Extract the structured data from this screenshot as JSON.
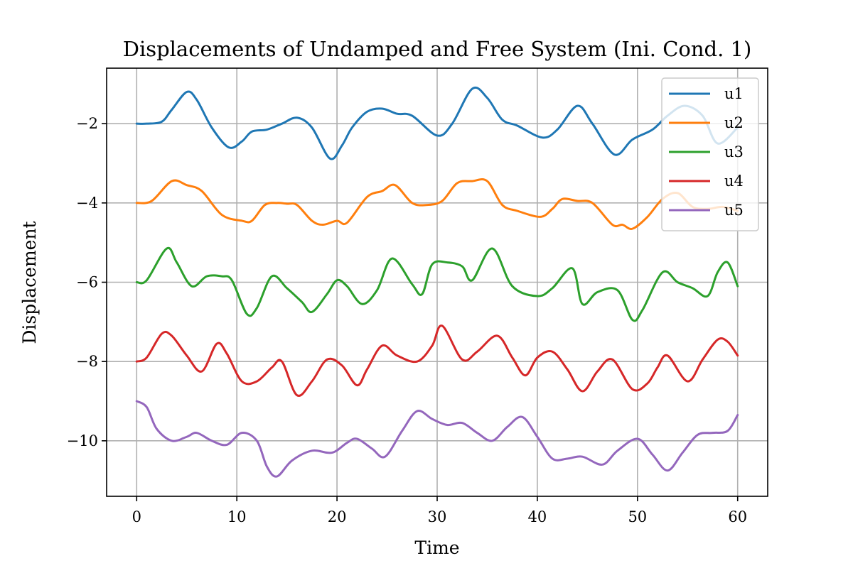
{
  "chart_data": {
    "type": "line",
    "title": "Displacements of Undamped and Free System (Ini. Cond. 1)",
    "xlabel": "Time",
    "ylabel": "Displacement",
    "xlim": [
      -3,
      63
    ],
    "ylim": [
      -11.4,
      -0.6
    ],
    "xticks": [
      0,
      10,
      20,
      30,
      40,
      50,
      60
    ],
    "xtick_labels": [
      "0",
      "10",
      "20",
      "30",
      "40",
      "50",
      "60"
    ],
    "yticks": [
      -2,
      -4,
      -6,
      -8,
      -10
    ],
    "ytick_labels": [
      "−2",
      "−4",
      "−6",
      "−8",
      "−10"
    ],
    "grid": true,
    "legend_position": "top-right",
    "series": [
      {
        "name": "u1",
        "color": "#1f77b4",
        "x": [
          0,
          1,
          2.5,
          3.5,
          5,
          6,
          7.5,
          9.2,
          10.5,
          11.5,
          13,
          14.5,
          16,
          17.5,
          19.3,
          20.5,
          21.5,
          23,
          24.5,
          26,
          27.5,
          30,
          31.5,
          33.5,
          35,
          36.5,
          38,
          40.5,
          42,
          44,
          45.5,
          47.7,
          49.5,
          51.5,
          53,
          54.7,
          56.5,
          58,
          60
        ],
        "y": [
          -2.0,
          -2.0,
          -1.95,
          -1.65,
          -1.2,
          -1.4,
          -2.1,
          -2.6,
          -2.45,
          -2.2,
          -2.15,
          -2.0,
          -1.85,
          -2.1,
          -2.88,
          -2.55,
          -2.1,
          -1.7,
          -1.62,
          -1.75,
          -1.8,
          -2.3,
          -2.0,
          -1.12,
          -1.35,
          -1.9,
          -2.05,
          -2.35,
          -2.15,
          -1.55,
          -2.0,
          -2.78,
          -2.4,
          -2.15,
          -1.8,
          -1.55,
          -1.8,
          -2.5,
          -2.1
        ]
      },
      {
        "name": "u2",
        "color": "#ff7f0e",
        "x": [
          0,
          1.5,
          3.5,
          5,
          6.5,
          8.5,
          10.5,
          11.5,
          12.8,
          14,
          15,
          16,
          17.5,
          18.6,
          20,
          21,
          23,
          24.5,
          25.8,
          27.5,
          29,
          30.5,
          32,
          33.5,
          35,
          36.5,
          38,
          40.3,
          41.5,
          42.5,
          44,
          45.5,
          47.5,
          48.5,
          49.5,
          51,
          52.5,
          54,
          55.5,
          57,
          58.5,
          60
        ],
        "y": [
          -4.0,
          -3.95,
          -3.45,
          -3.55,
          -3.7,
          -4.3,
          -4.45,
          -4.45,
          -4.05,
          -4.0,
          -4.02,
          -4.05,
          -4.45,
          -4.55,
          -4.45,
          -4.5,
          -3.85,
          -3.7,
          -3.55,
          -4.0,
          -4.05,
          -3.95,
          -3.5,
          -3.45,
          -3.45,
          -4.05,
          -4.2,
          -4.35,
          -4.15,
          -3.9,
          -3.95,
          -4.0,
          -4.55,
          -4.55,
          -4.65,
          -4.35,
          -3.9,
          -3.75,
          -4.1,
          -4.15,
          -4.1,
          -4.2
        ]
      },
      {
        "name": "u3",
        "color": "#2ca02c",
        "x": [
          0,
          1,
          3,
          4,
          5.5,
          7,
          8.5,
          9.5,
          11,
          12,
          13.5,
          15,
          16.5,
          17.5,
          19,
          20,
          21,
          22.5,
          24,
          25.5,
          27.5,
          28.5,
          29.5,
          31,
          32.5,
          33.5,
          35.5,
          37.5,
          40,
          41.5,
          43.5,
          44.5,
          46,
          48,
          49.5,
          50.5,
          52.5,
          54,
          55.5,
          57,
          58,
          59,
          60
        ],
        "y": [
          -6.0,
          -5.95,
          -5.15,
          -5.5,
          -6.1,
          -5.85,
          -5.85,
          -5.95,
          -6.8,
          -6.65,
          -5.85,
          -6.15,
          -6.5,
          -6.75,
          -6.3,
          -5.95,
          -6.1,
          -6.55,
          -6.2,
          -5.4,
          -6.05,
          -6.3,
          -5.55,
          -5.5,
          -5.6,
          -5.95,
          -5.15,
          -6.1,
          -6.35,
          -6.15,
          -5.65,
          -6.55,
          -6.25,
          -6.2,
          -6.95,
          -6.7,
          -5.75,
          -6.0,
          -6.15,
          -6.35,
          -5.75,
          -5.5,
          -6.1
        ]
      },
      {
        "name": "u4",
        "color": "#d62728",
        "x": [
          0,
          1,
          2.5,
          3.5,
          5,
          6.5,
          8,
          9,
          10.5,
          12,
          13.5,
          14.5,
          16,
          17.5,
          19,
          20.5,
          22,
          23,
          24.5,
          26,
          28,
          29.5,
          30.5,
          32.5,
          34,
          36,
          37.5,
          38.8,
          40,
          41.5,
          43,
          44.5,
          46,
          47.5,
          49.5,
          51,
          52,
          53,
          55,
          56.5,
          58,
          59,
          60
        ],
        "y": [
          -8.0,
          -7.9,
          -7.3,
          -7.35,
          -7.85,
          -8.25,
          -7.55,
          -7.8,
          -8.5,
          -8.5,
          -8.15,
          -8.0,
          -8.85,
          -8.5,
          -7.95,
          -8.1,
          -8.6,
          -8.2,
          -7.6,
          -7.85,
          -8.0,
          -7.6,
          -7.1,
          -7.95,
          -7.75,
          -7.35,
          -7.9,
          -8.35,
          -7.9,
          -7.75,
          -8.2,
          -8.75,
          -8.25,
          -7.95,
          -8.7,
          -8.55,
          -8.15,
          -7.85,
          -8.5,
          -7.95,
          -7.45,
          -7.5,
          -7.85
        ]
      },
      {
        "name": "u5",
        "color": "#9467bd",
        "x": [
          0,
          1,
          2,
          3.5,
          5,
          6,
          7.5,
          9,
          10.5,
          12,
          13,
          14,
          15.5,
          17.5,
          19.5,
          21,
          22,
          23.5,
          24.8,
          26.5,
          28,
          29.5,
          31,
          32.5,
          34,
          35.5,
          37,
          38.5,
          40,
          41.5,
          43,
          44.5,
          46.5,
          48,
          50,
          51.5,
          53,
          54.5,
          56,
          57.5,
          59,
          60
        ],
        "y": [
          -9.0,
          -9.15,
          -9.7,
          -10.0,
          -9.9,
          -9.8,
          -10.0,
          -10.1,
          -9.8,
          -10.0,
          -10.65,
          -10.9,
          -10.5,
          -10.25,
          -10.3,
          -10.05,
          -9.95,
          -10.2,
          -10.4,
          -9.75,
          -9.25,
          -9.45,
          -9.6,
          -9.55,
          -9.8,
          -10.0,
          -9.65,
          -9.4,
          -9.9,
          -10.45,
          -10.45,
          -10.4,
          -10.6,
          -10.25,
          -9.95,
          -10.35,
          -10.75,
          -10.3,
          -9.85,
          -9.8,
          -9.75,
          -9.35
        ]
      }
    ]
  }
}
